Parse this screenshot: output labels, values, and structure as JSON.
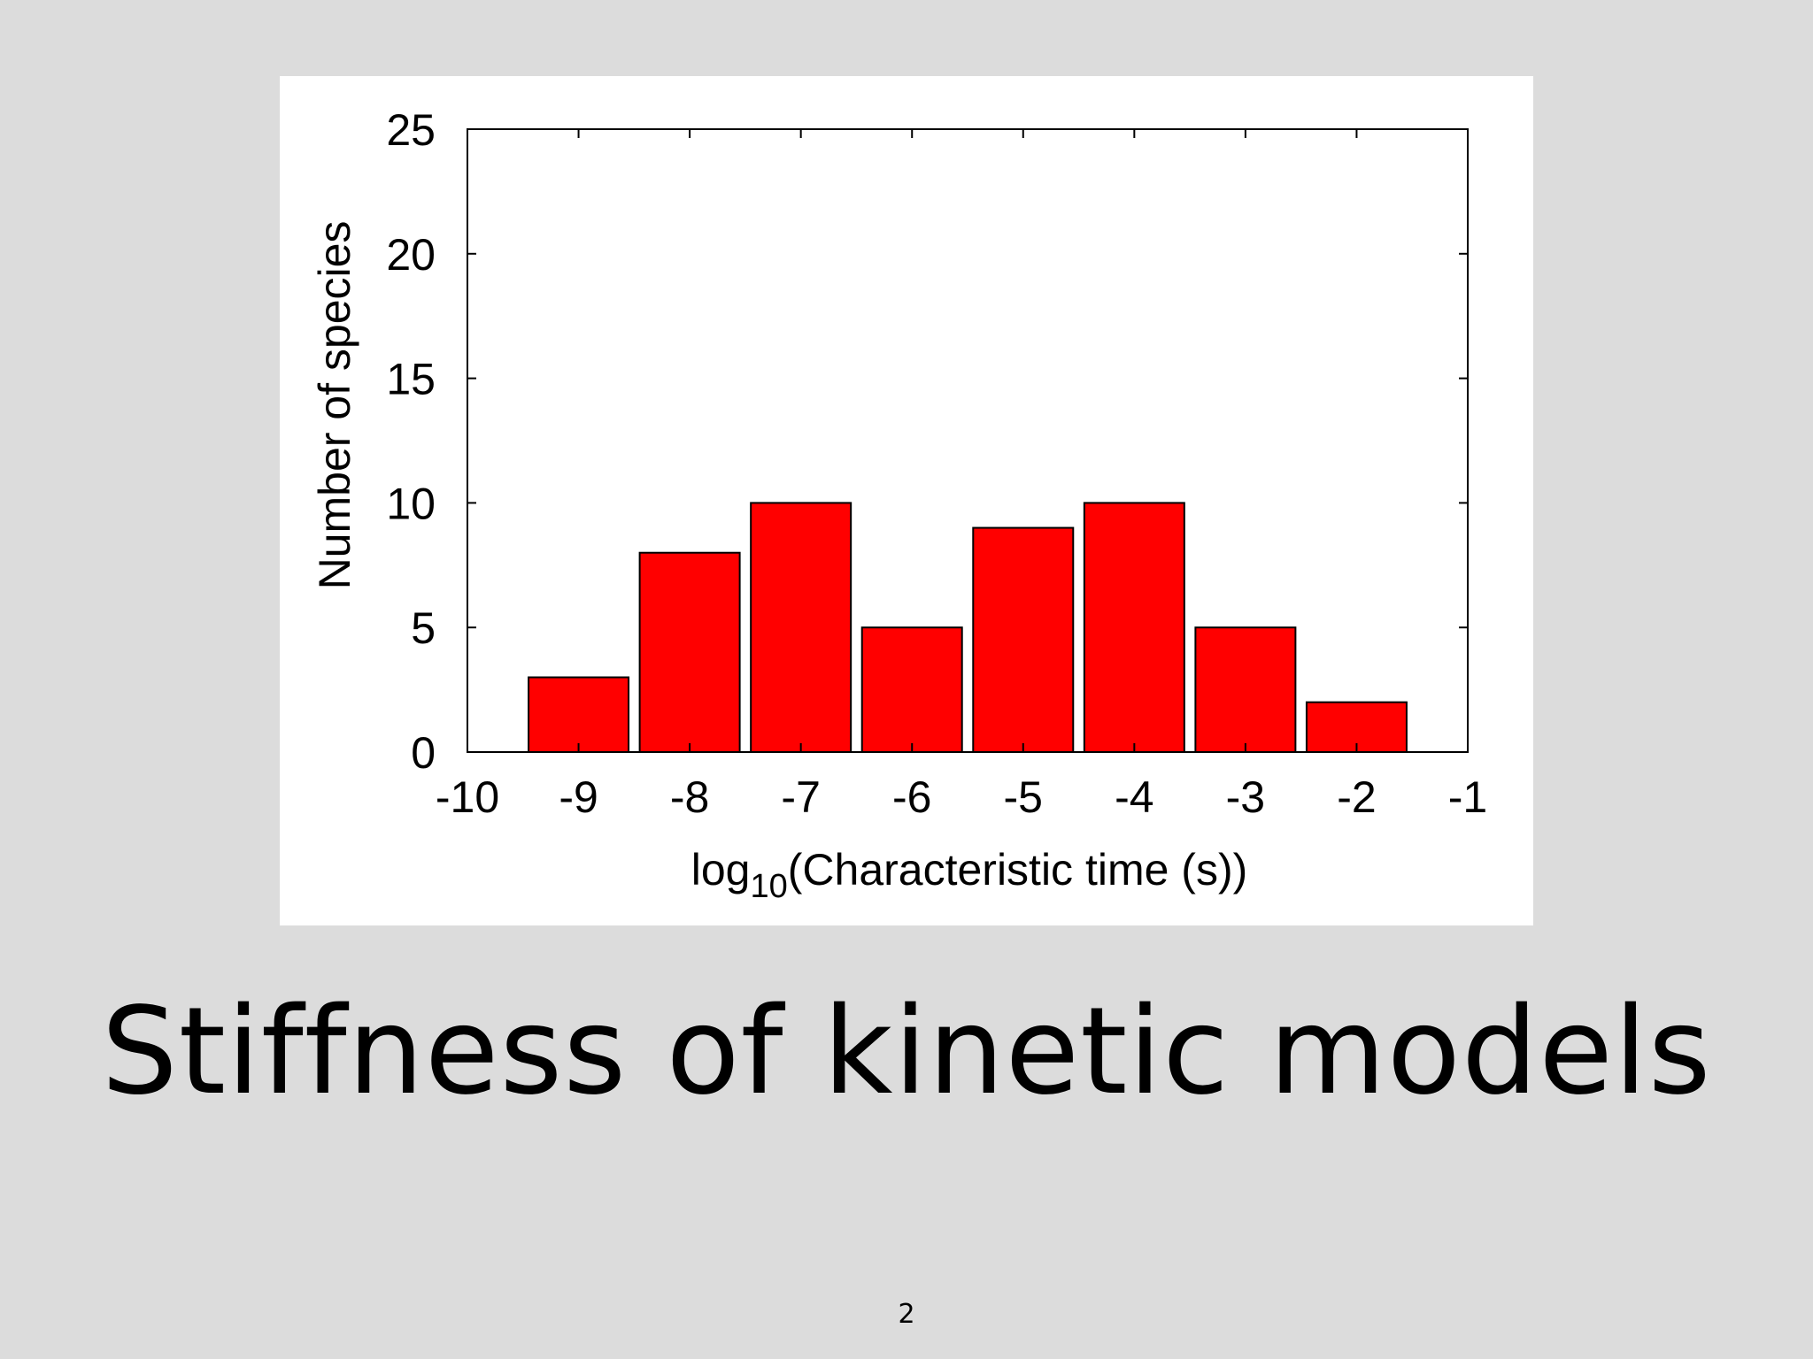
{
  "slide": {
    "title": "Stiffness of kinetic models",
    "page_number": "2"
  },
  "chart_data": {
    "type": "bar",
    "x_bins": [
      [
        -9.5,
        -8.5
      ],
      [
        -8.5,
        -7.5
      ],
      [
        -7.5,
        -6.5
      ],
      [
        -6.5,
        -5.5
      ],
      [
        -5.5,
        -4.5
      ],
      [
        -4.5,
        -3.5
      ],
      [
        -3.5,
        -2.5
      ],
      [
        -2.5,
        -1.5
      ]
    ],
    "categories": [
      "-9",
      "-8",
      "-7",
      "-6",
      "-5",
      "-4",
      "-3",
      "-2"
    ],
    "values": [
      3,
      8,
      10,
      5,
      9,
      10,
      5,
      2
    ],
    "xlim": [
      -10,
      -1
    ],
    "ylim": [
      0,
      25
    ],
    "xticks": [
      "-10",
      "-9",
      "-8",
      "-7",
      "-6",
      "-5",
      "-4",
      "-3",
      "-2",
      "-1"
    ],
    "yticks": [
      "0",
      "5",
      "10",
      "15",
      "20",
      "25"
    ],
    "xlabel_prefix": "log",
    "xlabel_subscript": "10",
    "xlabel_rest": "(Characteristic time (s))",
    "ylabel": "Number of species",
    "bar_color": "#ff0000",
    "grid": false,
    "legend": "none"
  }
}
